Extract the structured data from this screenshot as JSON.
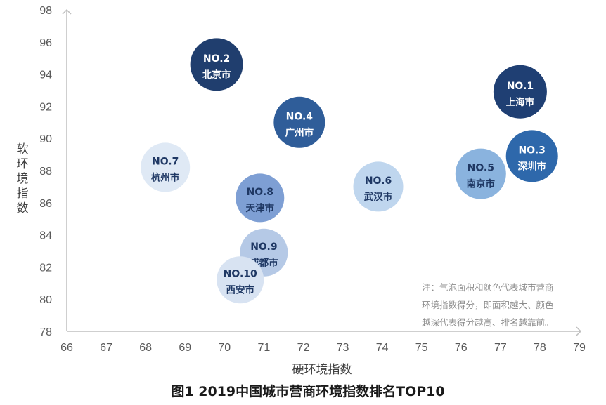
{
  "chart_data": {
    "type": "scatter",
    "title": "图1 2019中国城市营商环境指数排名TOP10",
    "xlabel": "硬环境指数",
    "ylabel": "软环境指数",
    "xlim": [
      66,
      79
    ],
    "ylim": [
      78,
      98
    ],
    "xticks": [
      66,
      67,
      68,
      69,
      70,
      71,
      72,
      73,
      74,
      75,
      76,
      77,
      78,
      79
    ],
    "yticks": [
      78,
      80,
      82,
      84,
      86,
      88,
      90,
      92,
      94,
      96,
      98
    ],
    "grid": false,
    "note": [
      "注：气泡面积和颜色代表城市营商",
      "环境指数得分，即面积越大、颜色",
      "越深代表得分越高、排名越靠前。"
    ],
    "points": [
      {
        "rank": "NO.1",
        "city": "上海市",
        "x": 77.5,
        "y": 92.9,
        "color": "#1f3f73"
      },
      {
        "rank": "NO.2",
        "city": "北京市",
        "x": 69.8,
        "y": 94.6,
        "color": "#203e6e"
      },
      {
        "rank": "NO.3",
        "city": "深圳市",
        "x": 77.8,
        "y": 88.9,
        "color": "#2e68ab"
      },
      {
        "rank": "NO.4",
        "city": "广州市",
        "x": 71.9,
        "y": 91.0,
        "color": "#2f5d99"
      },
      {
        "rank": "NO.5",
        "city": "南京市",
        "x": 76.5,
        "y": 87.8,
        "color": "#8ab3de"
      },
      {
        "rank": "NO.6",
        "city": "武汉市",
        "x": 73.9,
        "y": 87.0,
        "color": "#bfd6ee"
      },
      {
        "rank": "NO.7",
        "city": "杭州市",
        "x": 68.5,
        "y": 88.2,
        "color": "#dfe9f5"
      },
      {
        "rank": "NO.8",
        "city": "天津市",
        "x": 70.9,
        "y": 86.3,
        "color": "#7e9fd4"
      },
      {
        "rank": "NO.9",
        "city": "成都市",
        "x": 71.0,
        "y": 82.9,
        "color": "#b5c9e6"
      },
      {
        "rank": "NO.10",
        "city": "西安市",
        "x": 70.4,
        "y": 81.2,
        "color": "#d8e3f2"
      }
    ]
  }
}
